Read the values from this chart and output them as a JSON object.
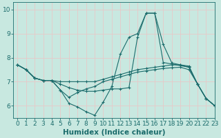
{
  "title": "",
  "xlabel": "Humidex (Indice chaleur)",
  "ylabel": "",
  "xlim": [
    -0.5,
    23
  ],
  "ylim": [
    5.5,
    10.3
  ],
  "bg_color": "#c8e8e0",
  "grid_color_v": "#e8c8c8",
  "grid_color_h": "#e8c8c8",
  "line_color": "#1a6b6b",
  "lines": [
    {
      "x": [
        0,
        1,
        2,
        3,
        4,
        5,
        6,
        7,
        8,
        9,
        10,
        11,
        12,
        13,
        14,
        15,
        16,
        17,
        18,
        19,
        20,
        21,
        22,
        23
      ],
      "y": [
        7.7,
        7.5,
        7.15,
        7.05,
        7.05,
        7.0,
        7.0,
        7.0,
        7.0,
        7.0,
        7.1,
        7.2,
        7.3,
        7.4,
        7.5,
        7.55,
        7.6,
        7.65,
        7.7,
        7.7,
        7.65,
        6.9,
        6.3,
        6.0
      ]
    },
    {
      "x": [
        0,
        1,
        2,
        3,
        4,
        5,
        6,
        7,
        8,
        9,
        10,
        11,
        12,
        13,
        14,
        15,
        16,
        17,
        18,
        19,
        20,
        21,
        22,
        23
      ],
      "y": [
        7.7,
        7.5,
        7.15,
        7.05,
        7.05,
        6.65,
        6.35,
        6.55,
        6.7,
        6.8,
        7.0,
        7.1,
        7.2,
        7.3,
        7.4,
        7.45,
        7.5,
        7.55,
        7.58,
        7.6,
        7.5,
        6.9,
        6.3,
        6.0
      ]
    },
    {
      "x": [
        0,
        1,
        2,
        3,
        4,
        5,
        6,
        7,
        8,
        9,
        10,
        11,
        12,
        13,
        14,
        15,
        16,
        17,
        20,
        21,
        22,
        23
      ],
      "y": [
        7.7,
        7.5,
        7.15,
        7.05,
        7.05,
        6.65,
        6.1,
        5.95,
        5.75,
        5.6,
        6.15,
        6.8,
        8.15,
        8.85,
        9.0,
        9.85,
        9.85,
        7.8,
        7.6,
        6.9,
        6.3,
        6.0
      ]
    },
    {
      "x": [
        0,
        1,
        2,
        3,
        4,
        5,
        6,
        7,
        8,
        9,
        10,
        11,
        12,
        13,
        14,
        15,
        16,
        17,
        18,
        19,
        20,
        21,
        22,
        23
      ],
      "y": [
        7.7,
        7.5,
        7.15,
        7.05,
        7.05,
        6.9,
        6.75,
        6.65,
        6.6,
        6.6,
        6.65,
        6.7,
        6.7,
        6.75,
        8.85,
        9.85,
        9.85,
        8.55,
        7.78,
        7.7,
        7.6,
        6.9,
        6.3,
        6.0
      ]
    }
  ],
  "xticks": [
    0,
    1,
    2,
    3,
    4,
    5,
    6,
    7,
    8,
    9,
    10,
    11,
    12,
    13,
    14,
    15,
    16,
    17,
    18,
    19,
    20,
    21,
    22,
    23
  ],
  "yticks": [
    6,
    7,
    8,
    9,
    10
  ],
  "tick_color": "#1a6b6b",
  "label_color": "#1a6b6b",
  "tick_fontsize": 6.5,
  "xlabel_fontsize": 7.5
}
